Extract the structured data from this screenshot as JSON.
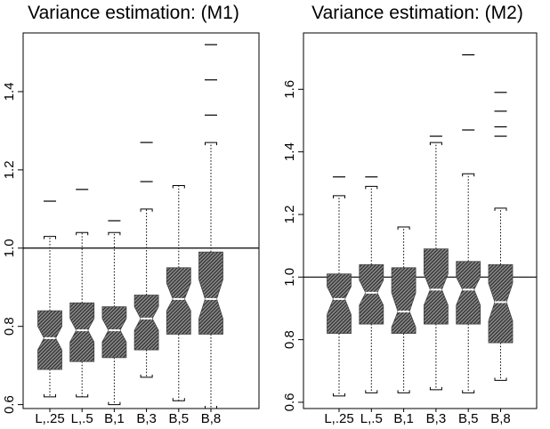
{
  "chart_data": [
    {
      "type": "box",
      "title": "Variance estimation: (M1)",
      "categories": [
        "L,.25",
        "L,.5",
        "B,1",
        "B,3",
        "B,5",
        "B,8"
      ],
      "yticks": [
        "0.6",
        "0.8",
        "1.0",
        "1.2",
        "1.4"
      ],
      "ylim": [
        0.59,
        1.55
      ],
      "reference_line": 1.0,
      "boxes": [
        {
          "whisker_low": 0.62,
          "q1": 0.69,
          "median": 0.77,
          "q3": 0.84,
          "whisker_high": 1.03,
          "notch": [
            0.74,
            0.8
          ],
          "outliers": [
            1.12
          ]
        },
        {
          "whisker_low": 0.62,
          "q1": 0.71,
          "median": 0.79,
          "q3": 0.86,
          "whisker_high": 1.04,
          "notch": [
            0.76,
            0.82
          ],
          "outliers": [
            1.15
          ]
        },
        {
          "whisker_low": 0.6,
          "q1": 0.72,
          "median": 0.79,
          "q3": 0.85,
          "whisker_high": 1.04,
          "notch": [
            0.76,
            0.82
          ],
          "outliers": [
            1.07
          ]
        },
        {
          "whisker_low": 0.67,
          "q1": 0.74,
          "median": 0.82,
          "q3": 0.88,
          "whisker_high": 1.1,
          "notch": [
            0.79,
            0.85
          ],
          "outliers": [
            1.17,
            1.27
          ]
        },
        {
          "whisker_low": 0.61,
          "q1": 0.78,
          "median": 0.87,
          "q3": 0.95,
          "whisker_high": 1.16,
          "notch": [
            0.84,
            0.91
          ],
          "outliers": []
        },
        {
          "whisker_low": 0.59,
          "q1": 0.78,
          "median": 0.87,
          "q3": 0.99,
          "whisker_high": 1.27,
          "notch": [
            0.82,
            0.92
          ],
          "outliers": [
            1.34,
            1.43,
            1.52
          ]
        }
      ]
    },
    {
      "type": "box",
      "title": "Variance estimation: (M2)",
      "categories": [
        "L,.25",
        "L,.5",
        "B,1",
        "B,3",
        "B,5",
        "B,8"
      ],
      "yticks": [
        "0.6",
        "0.8",
        "1.0",
        "1.2",
        "1.4",
        "1.6"
      ],
      "ylim": [
        0.58,
        1.78
      ],
      "reference_line": 1.0,
      "boxes": [
        {
          "whisker_low": 0.62,
          "q1": 0.82,
          "median": 0.93,
          "q3": 1.01,
          "whisker_high": 1.26,
          "notch": [
            0.88,
            0.97
          ],
          "outliers": [
            1.32
          ]
        },
        {
          "whisker_low": 0.63,
          "q1": 0.85,
          "median": 0.95,
          "q3": 1.04,
          "whisker_high": 1.29,
          "notch": [
            0.91,
            0.99
          ],
          "outliers": [
            1.32
          ]
        },
        {
          "whisker_low": 0.63,
          "q1": 0.82,
          "median": 0.89,
          "q3": 1.03,
          "whisker_high": 1.16,
          "notch": [
            0.84,
            0.95
          ],
          "outliers": []
        },
        {
          "whisker_low": 0.64,
          "q1": 0.85,
          "median": 0.96,
          "q3": 1.09,
          "whisker_high": 1.43,
          "notch": [
            0.91,
            1.01
          ],
          "outliers": [
            1.45
          ]
        },
        {
          "whisker_low": 0.63,
          "q1": 0.85,
          "median": 0.96,
          "q3": 1.05,
          "whisker_high": 1.33,
          "notch": [
            0.91,
            1.0
          ],
          "outliers": [
            1.47,
            1.71
          ]
        },
        {
          "whisker_low": 0.67,
          "q1": 0.79,
          "median": 0.92,
          "q3": 1.04,
          "whisker_high": 1.22,
          "notch": [
            0.86,
            0.98
          ],
          "outliers": [
            1.45,
            1.48,
            1.53,
            1.59
          ]
        }
      ]
    }
  ]
}
